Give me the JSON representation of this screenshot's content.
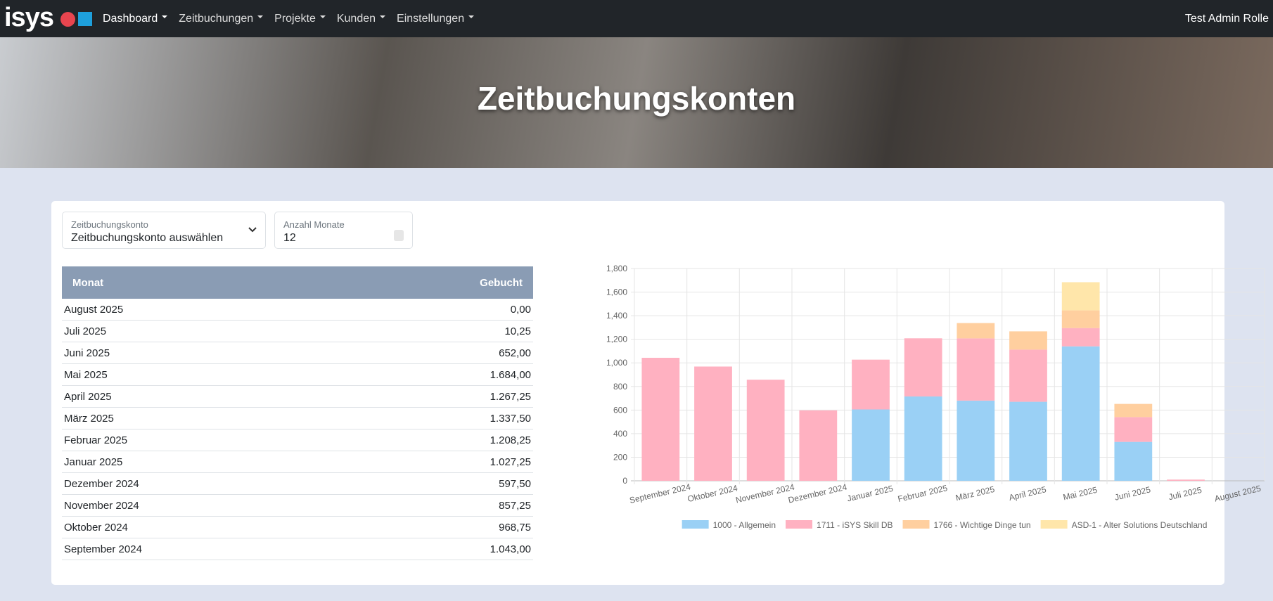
{
  "nav": {
    "brand": "isys",
    "items": [
      "Dashboard",
      "Zeitbuchungen",
      "Projekte",
      "Kunden",
      "Einstellungen"
    ],
    "user": "Test Admin Rolle"
  },
  "hero": {
    "title": "Zeitbuchungskonten"
  },
  "form": {
    "fields": [
      {
        "label": "Zeitbuchungskonto",
        "value": "Zeitbuchungskonto auswählen"
      },
      {
        "label": "Anzahl Monate",
        "value": "12"
      }
    ]
  },
  "table": {
    "columns": [
      "Monat",
      "Gebucht"
    ],
    "rows": [
      [
        "August 2025",
        "0,00"
      ],
      [
        "Juli 2025",
        "10,25"
      ],
      [
        "Juni 2025",
        "652,00"
      ],
      [
        "Mai 2025",
        "1.684,00"
      ],
      [
        "April 2025",
        "1.267,25"
      ],
      [
        "März 2025",
        "1.337,50"
      ],
      [
        "Februar 2025",
        "1.208,25"
      ],
      [
        "Januar 2025",
        "1.027,25"
      ],
      [
        "Dezember 2024",
        "597,50"
      ],
      [
        "November 2024",
        "857,25"
      ],
      [
        "Oktober 2024",
        "968,75"
      ],
      [
        "September 2024",
        "1.043,00"
      ]
    ]
  },
  "chart_data": {
    "type": "stacked-bar",
    "categories": [
      "September 2024",
      "Oktober 2024",
      "November 2024",
      "Dezember 2024",
      "Januar 2025",
      "Februar 2025",
      "März 2025",
      "April 2025",
      "Mai 2025",
      "Juni 2025",
      "Juli 2025",
      "August 2025"
    ],
    "series": [
      {
        "name": "1000 - Allgemein",
        "color": "#9ad0f5",
        "values": [
          0,
          0,
          0,
          0,
          605,
          715,
          680,
          670,
          1140,
          330,
          0,
          0
        ]
      },
      {
        "name": "1711 - iSYS Skill DB",
        "color": "#ffb1c1",
        "values": [
          1043,
          968.75,
          857.25,
          597.5,
          422.25,
          493.25,
          527.5,
          442.25,
          155,
          210,
          10.25,
          0
        ]
      },
      {
        "name": "1766 - Wichtige Dinge tun",
        "color": "#ffcf9f",
        "values": [
          0,
          0,
          0,
          0,
          0,
          0,
          130,
          155,
          150,
          112,
          0,
          0
        ]
      },
      {
        "name": "ASD-1 - Alter Solutions Deutschland",
        "color": "#ffe6aa",
        "values": [
          0,
          0,
          0,
          0,
          0,
          0,
          0,
          0,
          239,
          0,
          0,
          0
        ]
      }
    ],
    "ylim": [
      0,
      1800
    ],
    "yticks": [
      0,
      200,
      400,
      600,
      800,
      {
        "value": 1000,
        "label": "1,000"
      },
      {
        "value": 1200,
        "label": "1,200"
      },
      {
        "value": 1400,
        "label": "1,400"
      },
      {
        "value": 1600,
        "label": "1,600"
      },
      {
        "value": 1800,
        "label": "1,800"
      }
    ],
    "grid": true
  }
}
